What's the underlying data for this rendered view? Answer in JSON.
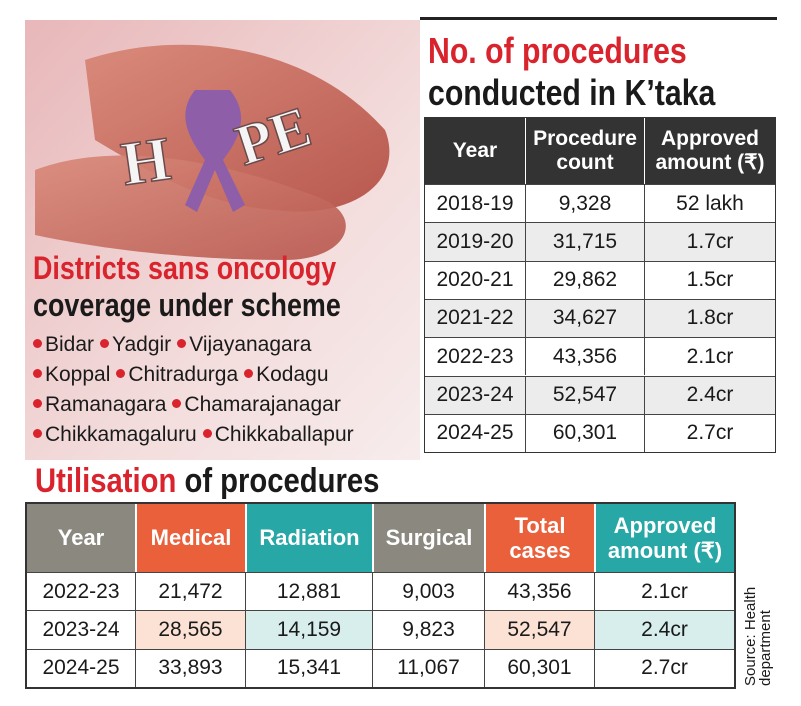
{
  "photo": {
    "letters": [
      "H",
      "PE"
    ]
  },
  "districts": {
    "title_red": "Districts sans oncology",
    "title_black": "coverage under scheme",
    "lines": [
      [
        "Bidar",
        "Yadgir",
        "Vijayanagara"
      ],
      [
        "Koppal",
        "Chitradurga",
        "Kodagu"
      ],
      [
        "Ramanagara",
        "Chamarajanagar"
      ],
      [
        "Chikkamagaluru",
        "Chikkaballapur"
      ]
    ]
  },
  "table1": {
    "title_red": "No. of procedures",
    "title_black": "conducted in K’taka",
    "header": [
      "Year",
      "Procedure count",
      "Approved amount (₹)"
    ],
    "rows": [
      [
        "2018-19",
        "9,328",
        "52 lakh"
      ],
      [
        "2019-20",
        "31,715",
        "1.7cr"
      ],
      [
        "2020-21",
        "29,862",
        "1.5cr"
      ],
      [
        "2021-22",
        "34,627",
        "1.8cr"
      ],
      [
        "2022-23",
        "43,356",
        "2.1cr"
      ],
      [
        "2023-24",
        "52,547",
        "2.4cr"
      ],
      [
        "2024-25",
        "60,301",
        "2.7cr"
      ]
    ]
  },
  "table2": {
    "title_red": "Utilisation",
    "title_black": "of procedures",
    "header": [
      "Year",
      "Medical",
      "Radiation",
      "Surgical",
      "Total cases",
      "Approved amount (₹)"
    ],
    "rows": [
      [
        "2022-23",
        "21,472",
        "12,881",
        "9,003",
        "43,356",
        "2.1cr"
      ],
      [
        "2023-24",
        "28,565",
        "14,159",
        "9,823",
        "52,547",
        "2.4cr"
      ],
      [
        "2024-25",
        "33,893",
        "15,341",
        "11,067",
        "60,301",
        "2.7cr"
      ]
    ]
  },
  "source": {
    "lines": [
      "Source: Health",
      "department"
    ]
  }
}
